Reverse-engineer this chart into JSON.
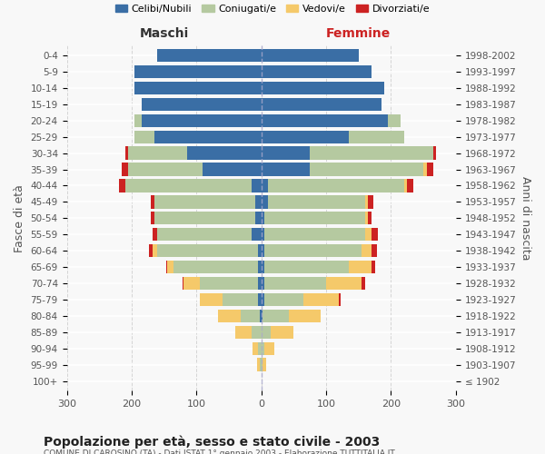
{
  "age_groups": [
    "100+",
    "95-99",
    "90-94",
    "85-89",
    "80-84",
    "75-79",
    "70-74",
    "65-69",
    "60-64",
    "55-59",
    "50-54",
    "45-49",
    "40-44",
    "35-39",
    "30-34",
    "25-29",
    "20-24",
    "15-19",
    "10-14",
    "5-9",
    "0-4"
  ],
  "birth_years": [
    "≤ 1902",
    "1903-1907",
    "1908-1912",
    "1913-1917",
    "1918-1922",
    "1923-1927",
    "1928-1932",
    "1933-1937",
    "1938-1942",
    "1943-1947",
    "1948-1952",
    "1953-1957",
    "1958-1962",
    "1963-1967",
    "1968-1972",
    "1973-1977",
    "1978-1982",
    "1983-1987",
    "1988-1992",
    "1993-1997",
    "1998-2002"
  ],
  "colors": {
    "celibe": "#3a6ea5",
    "coniugato": "#b5c9a0",
    "vedovo": "#f5c96a",
    "divorziato": "#cc2222"
  },
  "males": {
    "celibe": [
      0,
      0,
      0,
      0,
      2,
      5,
      5,
      5,
      5,
      15,
      10,
      10,
      15,
      90,
      115,
      165,
      185,
      185,
      195,
      195,
      160
    ],
    "coniugato": [
      0,
      2,
      5,
      15,
      30,
      55,
      90,
      130,
      155,
      145,
      155,
      155,
      195,
      115,
      90,
      30,
      10,
      0,
      0,
      0,
      0
    ],
    "vedovo": [
      0,
      5,
      8,
      25,
      35,
      35,
      25,
      10,
      8,
      0,
      0,
      0,
      0,
      0,
      0,
      0,
      0,
      0,
      0,
      0,
      0
    ],
    "divorziato": [
      0,
      0,
      0,
      0,
      0,
      0,
      2,
      2,
      5,
      8,
      5,
      5,
      10,
      10,
      5,
      0,
      0,
      0,
      0,
      0,
      0
    ]
  },
  "females": {
    "nubile": [
      0,
      0,
      0,
      0,
      2,
      5,
      5,
      5,
      5,
      5,
      5,
      10,
      10,
      75,
      75,
      135,
      195,
      185,
      190,
      170,
      150
    ],
    "coniugata": [
      0,
      2,
      5,
      15,
      40,
      60,
      95,
      130,
      150,
      155,
      155,
      150,
      210,
      175,
      190,
      85,
      20,
      0,
      0,
      0,
      0
    ],
    "vedova": [
      0,
      5,
      15,
      35,
      50,
      55,
      55,
      35,
      15,
      10,
      5,
      5,
      5,
      5,
      0,
      0,
      0,
      0,
      0,
      0,
      0
    ],
    "divorziata": [
      0,
      0,
      0,
      0,
      0,
      2,
      5,
      5,
      8,
      10,
      5,
      8,
      10,
      10,
      5,
      0,
      0,
      0,
      0,
      0,
      0
    ]
  },
  "xlim": 300,
  "title": "Popolazione per età, sesso e stato civile - 2003",
  "subtitle": "COMUNE DI CAROSINO (TA) - Dati ISTAT 1° gennaio 2003 - Elaborazione TUTTITALIA.IT",
  "xlabel_left": "Maschi",
  "xlabel_right": "Femmine",
  "ylabel_left": "Fasce di età",
  "ylabel_right": "Anni di nascita",
  "legend_labels": [
    "Celibi/Nubili",
    "Coniugati/e",
    "Vedovi/e",
    "Divorziati/e"
  ],
  "background_color": "#f8f8f8",
  "grid_color": "#cccccc"
}
